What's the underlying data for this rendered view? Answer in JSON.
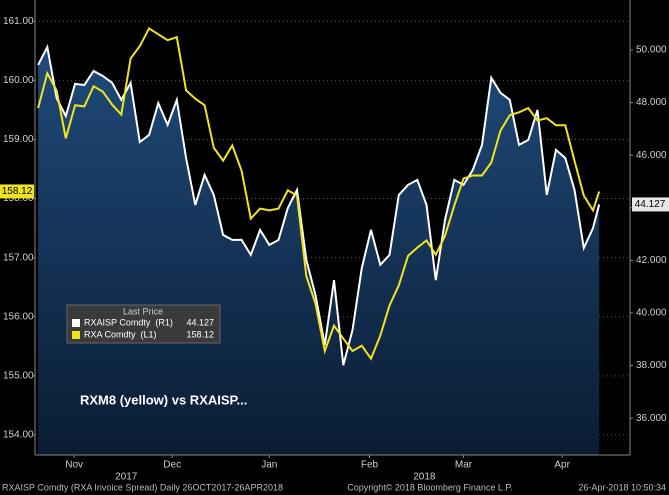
{
  "chart_data": {
    "type": "line",
    "annotation": "RXM8 (yellow) vs RXAISP...",
    "legend_title": "Last Price",
    "footer_left": "RXAISP Comdty (RXA Invoice Spread)  Daily 26OCT2017-26APR2018",
    "footer_center": "Copyright© 2018 Bloomberg Finance L.P.",
    "footer_right": "26-Apr-2018 10:50:34",
    "x": [
      0,
      3,
      6,
      9,
      12,
      15,
      18,
      21,
      24,
      27,
      30,
      33,
      36,
      39,
      42,
      45,
      48,
      51,
      54,
      57,
      60,
      63,
      66,
      69,
      72,
      75,
      78,
      81,
      84,
      87,
      90,
      93,
      96,
      99,
      102,
      105,
      108,
      111,
      114,
      117,
      120,
      123,
      126,
      129,
      132,
      135,
      138,
      141,
      144,
      147,
      150,
      153,
      156,
      159,
      162,
      165,
      168,
      171,
      174,
      177,
      180,
      182
    ],
    "xlim": [
      -1,
      192
    ],
    "xticks": [
      {
        "value": 11.7,
        "label": "Nov"
      },
      {
        "value": 43.5,
        "label": "Dec"
      },
      {
        "value": 75,
        "label": "Jan"
      },
      {
        "value": 107.5,
        "label": "Feb"
      },
      {
        "value": 138,
        "label": "Mar"
      },
      {
        "value": 170,
        "label": "Apr"
      }
    ],
    "year_ticks": [
      {
        "value": 28.6,
        "label": "2017"
      },
      {
        "value": 125.3,
        "label": "2018"
      }
    ],
    "ylim": [
      153.66,
      161.36
    ],
    "yticks": [
      {
        "value": 154,
        "label": "154.00"
      },
      {
        "value": 155,
        "label": "155.00"
      },
      {
        "value": 156,
        "label": "156.00"
      },
      {
        "value": 157,
        "label": "157.00"
      },
      {
        "value": 158,
        "label": "158.00"
      },
      {
        "value": 159,
        "label": "159.00"
      },
      {
        "value": 160,
        "label": "160.00"
      },
      {
        "value": 161,
        "label": "161.00"
      }
    ],
    "y2lim": [
      34.6,
      51.9
    ],
    "y2ticks": [
      {
        "value": 36,
        "label": "36.000"
      },
      {
        "value": 38,
        "label": "38.000"
      },
      {
        "value": 40,
        "label": "40.000"
      },
      {
        "value": 42,
        "label": "42.000"
      },
      {
        "value": 44,
        "label": "44.000"
      },
      {
        "value": 46,
        "label": "46.000"
      },
      {
        "value": 48,
        "label": "48.000"
      },
      {
        "value": 50,
        "label": "50.000"
      }
    ],
    "grid": true,
    "series": [
      {
        "name": "RXAISP Comdty  (R1)",
        "color": "#ffffff",
        "axis": "y2",
        "area": true,
        "values": [
          49.43,
          50.11,
          48.17,
          47.49,
          48.71,
          48.67,
          49.2,
          49.01,
          48.75,
          48.1,
          48.75,
          46.5,
          46.77,
          47.98,
          47.15,
          48.1,
          45.89,
          44.11,
          45.25,
          44.49,
          42.97,
          42.78,
          42.78,
          42.21,
          43.16,
          42.59,
          42.78,
          43.99,
          44.68,
          42.02,
          40.68,
          38.78,
          41.25,
          38.02,
          39.35,
          41.71,
          43.16,
          41.83,
          42.21,
          44.49,
          44.87,
          45.06,
          44.11,
          41.25,
          43.54,
          45.06,
          44.87,
          45.44,
          46.39,
          48.94,
          48.37,
          48.1,
          46.39,
          46.58,
          47.72,
          44.49,
          46.2,
          45.89,
          44.68,
          42.47,
          43.23,
          44.127
        ]
      },
      {
        "name": "RXA Comdty  (L1)",
        "color": "#f2e41a",
        "values": [
          159.53,
          160.12,
          159.83,
          159.02,
          159.58,
          159.56,
          159.9,
          159.81,
          159.59,
          159.42,
          160.37,
          160.58,
          160.88,
          160.78,
          160.68,
          160.73,
          159.83,
          159.69,
          159.58,
          158.86,
          158.64,
          158.9,
          158.47,
          157.66,
          157.83,
          157.8,
          157.83,
          158.14,
          158.05,
          156.69,
          156.22,
          155.42,
          155.85,
          155.63,
          155.42,
          155.51,
          155.29,
          155.68,
          156.19,
          156.53,
          157.03,
          157.17,
          157.29,
          157.05,
          157.37,
          157.88,
          158.34,
          158.39,
          158.39,
          158.61,
          159.15,
          159.41,
          159.46,
          159.53,
          159.32,
          159.36,
          159.24,
          159.24,
          158.64,
          158.05,
          157.8,
          158.12
        ]
      }
    ]
  }
}
